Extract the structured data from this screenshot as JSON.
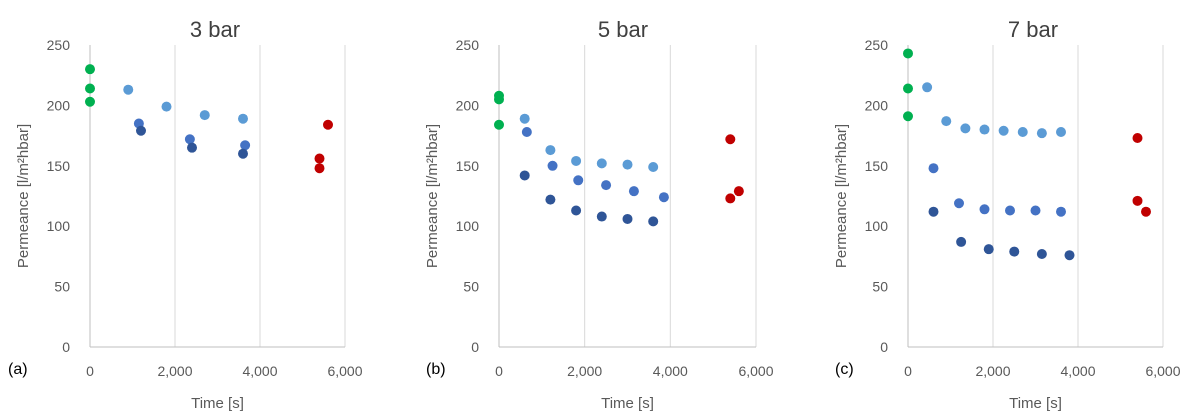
{
  "chart_data": [
    {
      "type": "scatter",
      "panel_label": "(a)",
      "title": "3 bar",
      "xlabel": "Time [s]",
      "ylabel": "Permeance [l/m²hbar]",
      "xlim": [
        0,
        6000
      ],
      "ylim": [
        0,
        250
      ],
      "xticks": [
        "0",
        "2,000",
        "4,000",
        "6,000"
      ],
      "yticks": [
        "0",
        "50",
        "100",
        "150",
        "200",
        "250"
      ],
      "grid": "vertical",
      "legend": "none",
      "series": [
        {
          "color": "#00b050",
          "points": [
            [
              0,
              230
            ],
            [
              0,
              214
            ],
            [
              0,
              203
            ]
          ]
        },
        {
          "color": "#5b9bd5",
          "points": [
            [
              900,
              213
            ],
            [
              1800,
              199
            ],
            [
              2700,
              192
            ],
            [
              3600,
              189
            ]
          ]
        },
        {
          "color": "#4472c4",
          "points": [
            [
              1150,
              185
            ],
            [
              2350,
              172
            ],
            [
              3650,
              167
            ]
          ]
        },
        {
          "color": "#2f5597",
          "points": [
            [
              1200,
              179
            ],
            [
              2400,
              165
            ],
            [
              3600,
              160
            ]
          ]
        },
        {
          "color": "#c00000",
          "points": [
            [
              5400,
              156
            ],
            [
              5400,
              148
            ],
            [
              5600,
              184
            ]
          ]
        }
      ]
    },
    {
      "type": "scatter",
      "panel_label": "(b)",
      "title": "5 bar",
      "xlabel": "Time [s]",
      "ylabel": "Permeance [l/m²hbar]",
      "xlim": [
        0,
        6000
      ],
      "ylim": [
        0,
        250
      ],
      "xticks": [
        "0",
        "2,000",
        "4,000",
        "6,000"
      ],
      "yticks": [
        "0",
        "50",
        "100",
        "150",
        "200",
        "250"
      ],
      "grid": "vertical",
      "legend": "none",
      "series": [
        {
          "color": "#00b050",
          "points": [
            [
              0,
              208
            ],
            [
              0,
              205
            ],
            [
              0,
              184
            ]
          ]
        },
        {
          "color": "#5b9bd5",
          "points": [
            [
              600,
              189
            ],
            [
              1200,
              163
            ],
            [
              1800,
              154
            ],
            [
              2400,
              152
            ],
            [
              3000,
              151
            ],
            [
              3600,
              149
            ]
          ]
        },
        {
          "color": "#4472c4",
          "points": [
            [
              650,
              178
            ],
            [
              1250,
              150
            ],
            [
              1850,
              138
            ],
            [
              2500,
              134
            ],
            [
              3150,
              129
            ],
            [
              3850,
              124
            ]
          ]
        },
        {
          "color": "#2f5597",
          "points": [
            [
              600,
              142
            ],
            [
              1200,
              122
            ],
            [
              1800,
              113
            ],
            [
              2400,
              108
            ],
            [
              3000,
              106
            ],
            [
              3600,
              104
            ]
          ]
        },
        {
          "color": "#c00000",
          "points": [
            [
              5400,
              172
            ],
            [
              5400,
              123
            ],
            [
              5600,
              129
            ]
          ]
        }
      ]
    },
    {
      "type": "scatter",
      "panel_label": "(c)",
      "title": "7 bar",
      "xlabel": "Time [s]",
      "ylabel": "Permeance [l/m²hbar]",
      "xlim": [
        0,
        6000
      ],
      "ylim": [
        0,
        250
      ],
      "xticks": [
        "0",
        "2,000",
        "4,000",
        "6,000"
      ],
      "yticks": [
        "0",
        "50",
        "100",
        "150",
        "200",
        "250"
      ],
      "grid": "vertical",
      "legend": "none",
      "series": [
        {
          "color": "#00b050",
          "points": [
            [
              0,
              243
            ],
            [
              0,
              214
            ],
            [
              0,
              191
            ]
          ]
        },
        {
          "color": "#5b9bd5",
          "points": [
            [
              450,
              215
            ],
            [
              900,
              187
            ],
            [
              1350,
              181
            ],
            [
              1800,
              180
            ],
            [
              2250,
              179
            ],
            [
              2700,
              178
            ],
            [
              3150,
              177
            ],
            [
              3600,
              178
            ]
          ]
        },
        {
          "color": "#4472c4",
          "points": [
            [
              600,
              148
            ],
            [
              1200,
              119
            ],
            [
              1800,
              114
            ],
            [
              2400,
              113
            ],
            [
              3000,
              113
            ],
            [
              3600,
              112
            ]
          ]
        },
        {
          "color": "#2f5597",
          "points": [
            [
              600,
              112
            ],
            [
              1250,
              87
            ],
            [
              1900,
              81
            ],
            [
              2500,
              79
            ],
            [
              3150,
              77
            ],
            [
              3800,
              76
            ]
          ]
        },
        {
          "color": "#c00000",
          "points": [
            [
              5400,
              173
            ],
            [
              5400,
              121
            ],
            [
              5600,
              112
            ]
          ]
        }
      ]
    }
  ]
}
